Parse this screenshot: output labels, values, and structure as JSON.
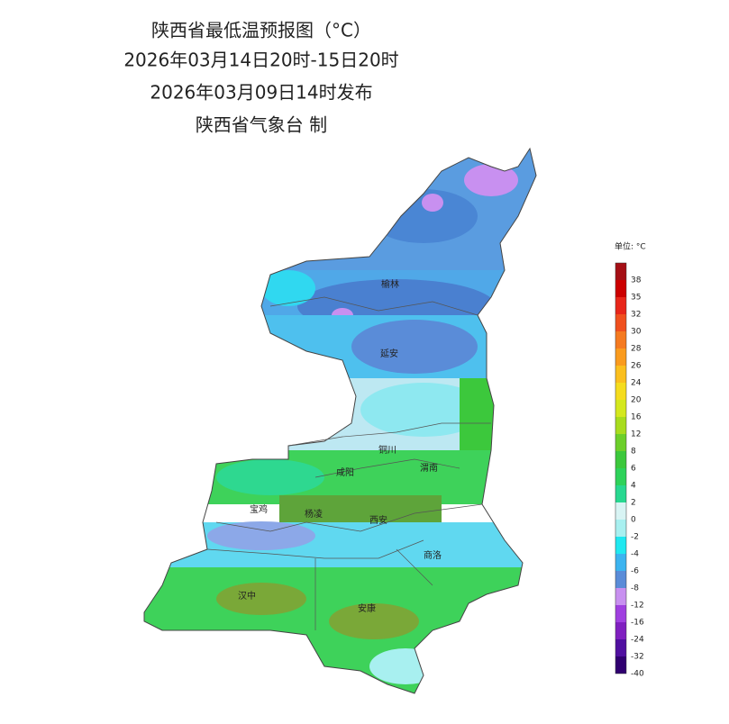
{
  "header": {
    "title": "陕西省最低温预报图（°C）",
    "period": "2026年03月14日20时-15日20时",
    "issued": "2026年03月09日14时发布",
    "publisher": "陕西省气象台 制"
  },
  "cities": [
    "榆林",
    "延安",
    "铜川",
    "咸阳",
    "渭南",
    "宝鸡",
    "杨凌",
    "西安",
    "商洛",
    "汉中",
    "安康"
  ],
  "legend": {
    "unit": "单位: °C",
    "levels": [
      {
        "value": 38,
        "color": "#a50f15"
      },
      {
        "value": 35,
        "color": "#cc0000"
      },
      {
        "value": 32,
        "color": "#e8261a"
      },
      {
        "value": 30,
        "color": "#f0501e"
      },
      {
        "value": 28,
        "color": "#f57a20"
      },
      {
        "value": 26,
        "color": "#fa9b1e"
      },
      {
        "value": 24,
        "color": "#fbbf1e"
      },
      {
        "value": 20,
        "color": "#f5dc1e"
      },
      {
        "value": 16,
        "color": "#d4e81e"
      },
      {
        "value": 12,
        "color": "#a8dc1e"
      },
      {
        "value": 8,
        "color": "#6ccf2a"
      },
      {
        "value": 6,
        "color": "#3cc83c"
      },
      {
        "value": 4,
        "color": "#2ed25a"
      },
      {
        "value": 2,
        "color": "#28d890"
      },
      {
        "value": 0,
        "color": "#d8f4f4"
      },
      {
        "value": -2,
        "color": "#a8f0f0"
      },
      {
        "value": -4,
        "color": "#20e8f0"
      },
      {
        "value": -6,
        "color": "#3cb4f0"
      },
      {
        "value": -8,
        "color": "#5a8cd8"
      },
      {
        "value": -12,
        "color": "#c890f0"
      },
      {
        "value": -16,
        "color": "#a040e0"
      },
      {
        "value": -24,
        "color": "#8020c0"
      },
      {
        "value": -32,
        "color": "#5010a0"
      },
      {
        "value": -40,
        "color": "#300070"
      }
    ]
  }
}
